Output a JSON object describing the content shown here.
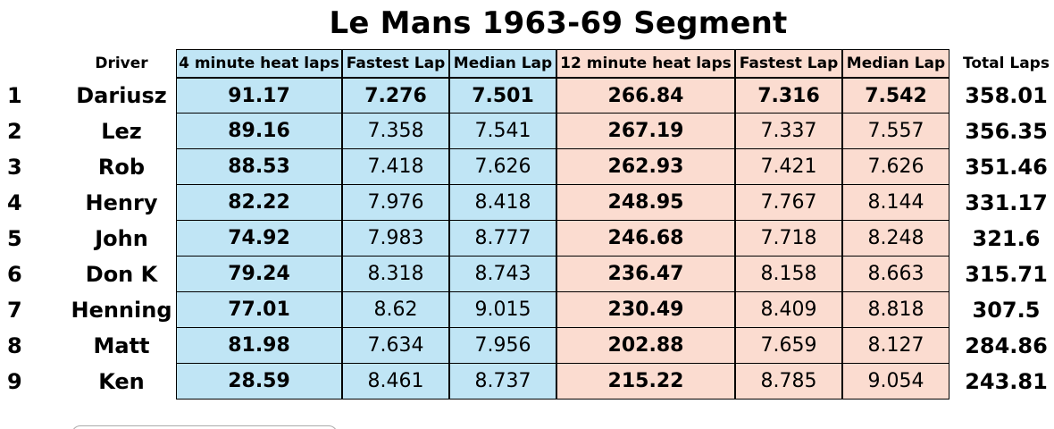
{
  "title": "Le Mans 1963-69 Segment",
  "headers": {
    "rank": "",
    "driver": "Driver",
    "heat4_laps": "4 minute heat laps",
    "fastest_lap_1": "Fastest Lap",
    "median_lap_1": "Median Lap",
    "heat12_laps": "12 minute heat laps",
    "fastest_lap_2": "Fastest Lap",
    "median_lap_2": "Median Lap",
    "total_laps": "Total Laps"
  },
  "rows": [
    {
      "rank": "1",
      "driver": "Dariusz",
      "h4": "91.17",
      "f1": "7.276",
      "m1": "7.501",
      "h12": "266.84",
      "f2": "7.316",
      "m2": "7.542",
      "total": "358.01"
    },
    {
      "rank": "2",
      "driver": "Lez",
      "h4": "89.16",
      "f1": "7.358",
      "m1": "7.541",
      "h12": "267.19",
      "f2": "7.337",
      "m2": "7.557",
      "total": "356.35"
    },
    {
      "rank": "3",
      "driver": "Rob",
      "h4": "88.53",
      "f1": "7.418",
      "m1": "7.626",
      "h12": "262.93",
      "f2": "7.421",
      "m2": "7.626",
      "total": "351.46"
    },
    {
      "rank": "4",
      "driver": "Henry",
      "h4": "82.22",
      "f1": "7.976",
      "m1": "8.418",
      "h12": "248.95",
      "f2": "7.767",
      "m2": "8.144",
      "total": "331.17"
    },
    {
      "rank": "5",
      "driver": "John",
      "h4": "74.92",
      "f1": "7.983",
      "m1": "8.777",
      "h12": "246.68",
      "f2": "7.718",
      "m2": "8.248",
      "total": "321.6"
    },
    {
      "rank": "6",
      "driver": "Don K",
      "h4": "79.24",
      "f1": "8.318",
      "m1": "8.743",
      "h12": "236.47",
      "f2": "8.158",
      "m2": "8.663",
      "total": "315.71"
    },
    {
      "rank": "7",
      "driver": "Henning",
      "h4": "77.01",
      "f1": "8.62",
      "m1": "9.015",
      "h12": "230.49",
      "f2": "8.409",
      "m2": "8.818",
      "total": "307.5"
    },
    {
      "rank": "8",
      "driver": "Matt",
      "h4": "81.98",
      "f1": "7.634",
      "m1": "7.956",
      "h12": "202.88",
      "f2": "7.659",
      "m2": "8.127",
      "total": "284.86"
    },
    {
      "rank": "9",
      "driver": "Ken",
      "h4": "28.59",
      "f1": "8.461",
      "m1": "8.737",
      "h12": "215.22",
      "f2": "8.785",
      "m2": "9.054",
      "total": "243.81"
    }
  ],
  "colors": {
    "heat4_fill": "#c0e5f5",
    "heat12_fill": "#fbdcd0",
    "border": "#000000"
  }
}
